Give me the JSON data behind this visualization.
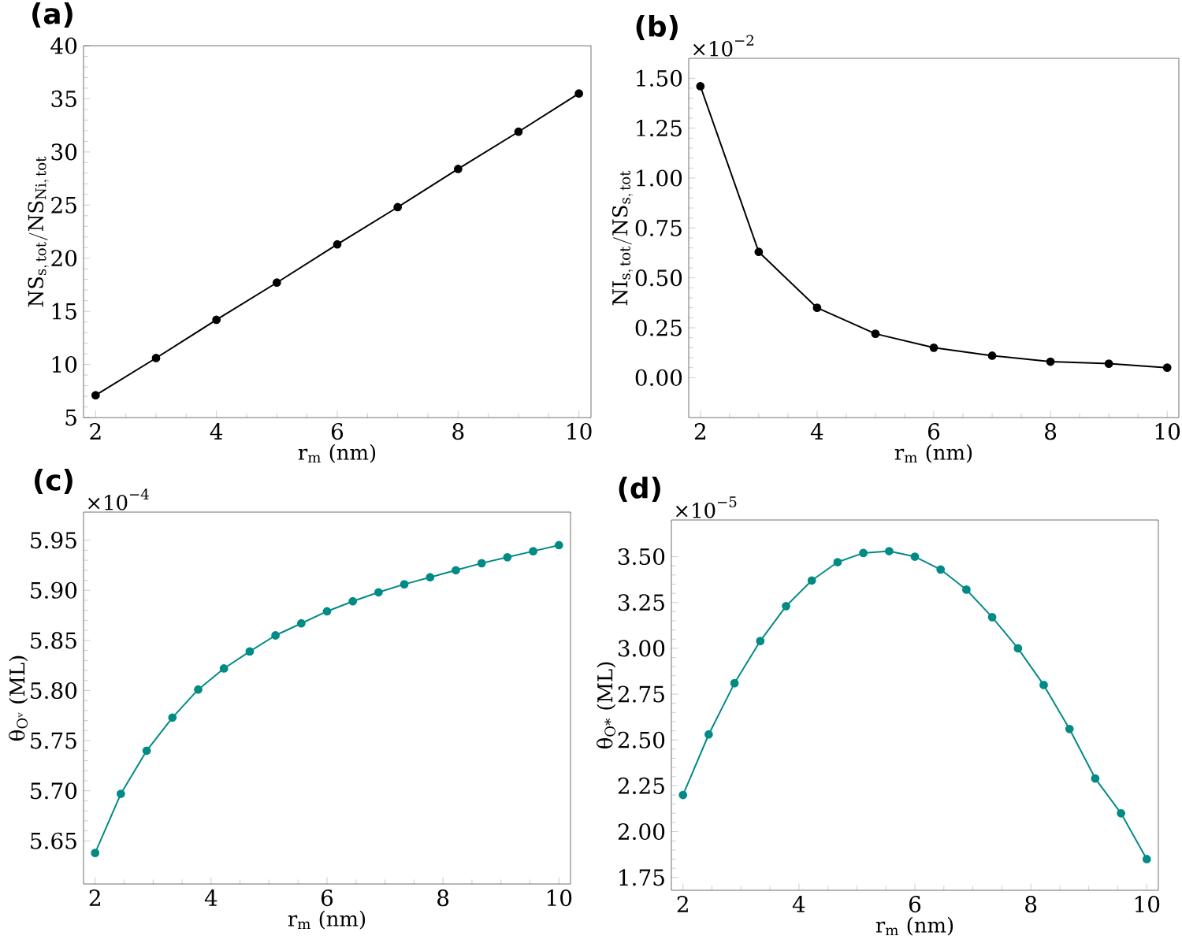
{
  "chart_data": [
    {
      "type": "line",
      "title": "(a)",
      "xlabel": "r$_{m}$ (nm)",
      "ylabel": "\\mathrm{NS}_{\\mathrm{s,\\,tot}}/\\mathrm{NS}_{\\mathrm{Ni,\\,tot}}",
      "marker": "circle",
      "grid": false,
      "x": [
        2,
        3,
        4,
        5,
        6,
        7,
        8,
        9,
        10
      ],
      "series": [
        {
          "color": "#000000",
          "values": [
            7.1,
            10.6,
            14.2,
            17.7,
            21.3,
            24.8,
            28.4,
            31.9,
            35.5
          ]
        }
      ],
      "xlim": [
        1.8,
        10.2
      ],
      "ylim": [
        5,
        40
      ],
      "xticks": [
        2,
        4,
        6,
        8,
        10
      ],
      "yticks": [
        5,
        10,
        15,
        20,
        25,
        30,
        35,
        40
      ]
    },
    {
      "type": "line",
      "title": "(b)",
      "xlabel": "r$_{m}$ (nm)",
      "ylabel": "\\mathrm{NI}_{\\mathrm{s,\\,tot}}/\\mathrm{NS}_{\\mathrm{s,\\,tot}}",
      "marker": "circle",
      "grid": false,
      "annotations": [
        "×10$^{−2}$"
      ],
      "x": [
        2,
        3,
        4,
        5,
        6,
        7,
        8,
        9,
        10
      ],
      "series": [
        {
          "color": "#000000",
          "values": [
            1.46,
            0.63,
            0.35,
            0.22,
            0.15,
            0.11,
            0.08,
            0.07,
            0.05
          ]
        }
      ],
      "xlim": [
        1.8,
        10.2
      ],
      "ylim": [
        -0.2,
        1.6
      ],
      "xticks": [
        2,
        4,
        6,
        8,
        10
      ],
      "yticks": [
        {
          "value": 0,
          "label": "0.00"
        },
        {
          "value": 0.25,
          "label": "0.25"
        },
        {
          "value": 0.5,
          "label": "0.50"
        },
        {
          "value": 0.75,
          "label": "0.75"
        },
        {
          "value": 1,
          "label": "1.00"
        },
        {
          "value": 1.25,
          "label": "1.25"
        },
        {
          "value": 1.5,
          "label": "1.50"
        }
      ]
    },
    {
      "type": "line",
      "title": "(c)",
      "xlabel": "r$_{m}$ (nm)",
      "ylabel": "θ$_{Oᵛ}$ (ML)",
      "marker": "circle",
      "grid": false,
      "annotations": [
        "×10$^{−4}$"
      ],
      "x": [
        2,
        2.444,
        2.889,
        3.333,
        3.778,
        4.222,
        4.667,
        5.111,
        5.556,
        6,
        6.444,
        6.889,
        7.333,
        7.778,
        8.222,
        8.667,
        9.111,
        9.556,
        10
      ],
      "series": [
        {
          "color": "#008b84",
          "values": [
            5.638,
            5.697,
            5.74,
            5.773,
            5.801,
            5.822,
            5.839,
            5.855,
            5.867,
            5.879,
            5.889,
            5.898,
            5.906,
            5.913,
            5.92,
            5.927,
            5.933,
            5.939,
            5.945
          ]
        }
      ],
      "xlim": [
        1.8,
        10.2
      ],
      "ylim": [
        5.607,
        5.978
      ],
      "xticks": [
        2,
        4,
        6,
        8,
        10
      ],
      "yticks": [
        {
          "value": 5.65,
          "label": "5.65"
        },
        {
          "value": 5.7,
          "label": "5.70"
        },
        {
          "value": 5.75,
          "label": "5.75"
        },
        {
          "value": 5.8,
          "label": "5.80"
        },
        {
          "value": 5.85,
          "label": "5.85"
        },
        {
          "value": 5.9,
          "label": "5.90"
        },
        {
          "value": 5.95,
          "label": "5.95"
        }
      ]
    },
    {
      "type": "line",
      "title": "(d)",
      "xlabel": "r$_{m}$ (nm)",
      "ylabel": "θ$_{O*}$ (ML)",
      "marker": "circle",
      "grid": false,
      "annotations": [
        "×10$^{−5}$"
      ],
      "x": [
        2,
        2.444,
        2.889,
        3.333,
        3.778,
        4.222,
        4.667,
        5.111,
        5.556,
        6,
        6.444,
        6.889,
        7.333,
        7.778,
        8.222,
        8.667,
        9.111,
        9.556,
        10
      ],
      "series": [
        {
          "color": "#008b84",
          "values": [
            2.2,
            2.53,
            2.81,
            3.04,
            3.23,
            3.37,
            3.47,
            3.52,
            3.53,
            3.5,
            3.43,
            3.32,
            3.17,
            3.0,
            2.8,
            2.56,
            2.29,
            2.1,
            1.85
          ]
        }
      ],
      "xlim": [
        1.8,
        10.2
      ],
      "ylim": [
        1.68,
        3.7
      ],
      "xticks": [
        2,
        4,
        6,
        8,
        10
      ],
      "yticks": [
        {
          "value": 1.75,
          "label": "1.75"
        },
        {
          "value": 2,
          "label": "2.00"
        },
        {
          "value": 2.25,
          "label": "2.25"
        },
        {
          "value": 2.5,
          "label": "2.50"
        },
        {
          "value": 2.75,
          "label": "2.75"
        },
        {
          "value": 3,
          "label": "3.00"
        },
        {
          "value": 3.25,
          "label": "3.25"
        },
        {
          "value": 3.5,
          "label": "3.50"
        }
      ]
    }
  ]
}
